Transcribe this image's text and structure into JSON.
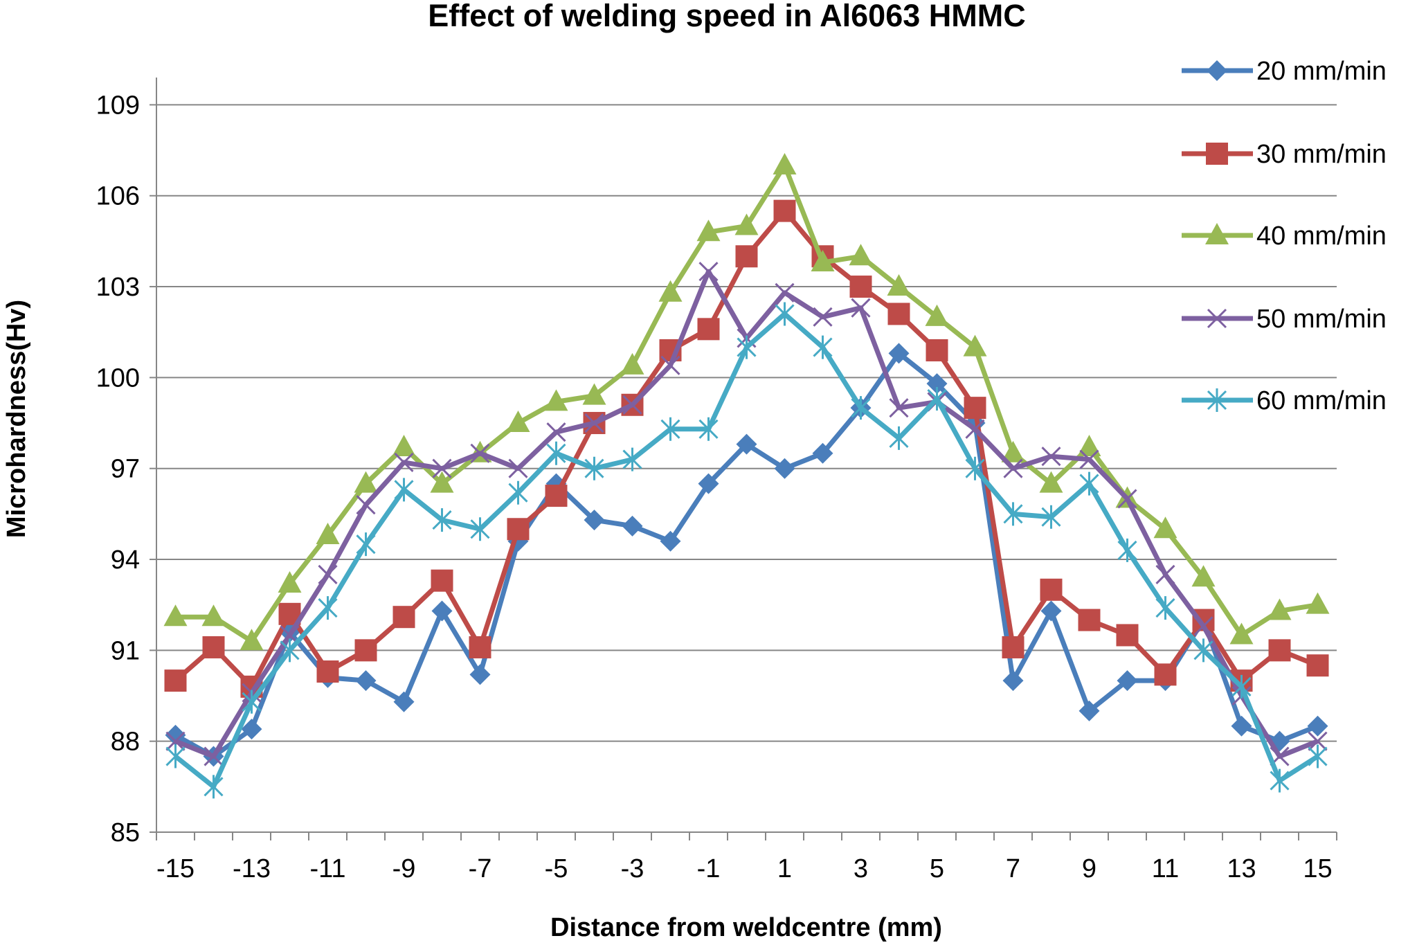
{
  "chart_data": {
    "type": "line",
    "title": "Effect of welding speed in Al6063 HMMC",
    "xlabel": "Distance from weldcentre (mm)",
    "ylabel": "Microhardness(Hv)",
    "x": [
      -15,
      -14,
      -13,
      -12,
      -11,
      -10,
      -9,
      -8,
      -7,
      -6,
      -5,
      -4,
      -3,
      -2,
      -1,
      0,
      1,
      2,
      3,
      4,
      5,
      6,
      7,
      8,
      9,
      10,
      11,
      12,
      13,
      14,
      15
    ],
    "x_tick_labels": [
      "-15",
      "-13",
      "-11",
      "-9",
      "-7",
      "-5",
      "-3",
      "-1",
      "1",
      "3",
      "5",
      "7",
      "9",
      "11",
      "13",
      "15"
    ],
    "y_ticks": [
      85,
      88,
      91,
      94,
      97,
      100,
      103,
      106,
      109
    ],
    "y_tick_labels": [
      "85",
      "88",
      "91",
      "94",
      "97",
      "100",
      "103",
      "106",
      "109"
    ],
    "ylim": [
      85,
      109.9
    ],
    "xlim": [
      -15.5,
      15.5
    ],
    "grid": "horizontal",
    "legend": "right",
    "series": [
      {
        "name": "20 mm/min",
        "color": "#4a7ebb",
        "marker": "diamond",
        "values": [
          88.2,
          87.5,
          88.4,
          91.6,
          90.1,
          90.0,
          89.3,
          92.3,
          90.2,
          94.6,
          96.5,
          95.3,
          95.1,
          94.6,
          96.5,
          97.8,
          97.0,
          97.5,
          99.0,
          100.8,
          99.8,
          98.5,
          90.0,
          92.3,
          89.0,
          90.0,
          90.0,
          92.0,
          88.5,
          88.0,
          88.5
        ]
      },
      {
        "name": "30 mm/min",
        "color": "#be4b48",
        "marker": "square",
        "values": [
          90.0,
          91.1,
          89.8,
          92.2,
          90.3,
          91.0,
          92.1,
          93.3,
          91.1,
          95.0,
          96.1,
          98.5,
          99.1,
          100.9,
          101.6,
          104.0,
          105.5,
          104.0,
          103.0,
          102.1,
          100.9,
          99.0,
          91.1,
          93.0,
          92.0,
          91.5,
          90.2,
          92.0,
          90.0,
          91.0,
          90.5
        ]
      },
      {
        "name": "40 mm/min",
        "color": "#98b954",
        "marker": "triangle",
        "values": [
          92.1,
          92.1,
          91.3,
          93.2,
          94.8,
          96.5,
          97.7,
          96.5,
          97.5,
          98.5,
          99.2,
          99.4,
          100.4,
          102.8,
          104.8,
          105.0,
          107.0,
          103.8,
          104.0,
          103.0,
          102.0,
          101.0,
          97.5,
          96.5,
          97.7,
          96.0,
          95.0,
          93.4,
          91.5,
          92.3,
          92.5
        ]
      },
      {
        "name": "50 mm/min",
        "color": "#7d60a0",
        "marker": "x",
        "values": [
          88.0,
          87.5,
          89.6,
          91.5,
          93.5,
          95.8,
          97.2,
          97.0,
          97.5,
          97.0,
          98.2,
          98.5,
          99.1,
          100.4,
          103.5,
          101.3,
          102.8,
          102.0,
          102.3,
          99.0,
          99.2,
          98.3,
          97.0,
          97.4,
          97.3,
          96.0,
          93.5,
          91.8,
          89.5,
          87.5,
          88.0
        ]
      },
      {
        "name": "60 mm/min",
        "color": "#46aac5",
        "marker": "asterisk",
        "values": [
          87.5,
          86.5,
          89.3,
          91.0,
          92.4,
          94.5,
          96.3,
          95.3,
          95.0,
          96.2,
          97.5,
          97.0,
          97.3,
          98.3,
          98.3,
          101.0,
          102.1,
          101.0,
          99.0,
          98.0,
          99.3,
          97.0,
          95.5,
          95.4,
          96.5,
          94.3,
          92.4,
          91.0,
          89.8,
          86.7,
          87.5
        ]
      }
    ]
  }
}
